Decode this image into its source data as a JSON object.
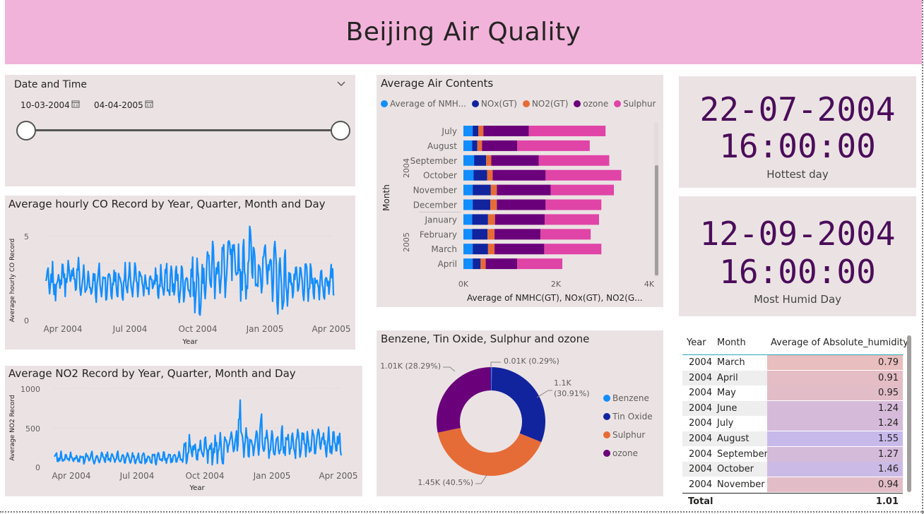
{
  "title": "Beijing Air Quality",
  "slicer": {
    "label": "Date and Time",
    "start": "10-03-2004",
    "end": "04-04-2005",
    "calendar_icon": "calendar-icon",
    "chevron_icon": "chevron-down-icon"
  },
  "co_chart": {
    "title": "Average hourly CO Record by Year, Quarter, Month and Day",
    "ylabel": "Average hourly CO Record",
    "xlabel": "Year",
    "yticks": [
      "5",
      "0"
    ],
    "xticks": [
      "Apr 2004",
      "Jul 2004",
      "Oct 2004",
      "Jan 2005",
      "Apr 2005"
    ]
  },
  "no2_chart": {
    "title": "Average NO2 Record by Year, Quarter, Month and Day",
    "ylabel": "Average NO2 Record",
    "xlabel": "Year",
    "yticks": [
      "1000",
      "500",
      "0"
    ],
    "xticks": [
      "Apr 2004",
      "Jul 2004",
      "Oct 2004",
      "Jan 2005",
      "Apr 2005"
    ]
  },
  "air_chart": {
    "title": "Average Air Contents",
    "legend": [
      {
        "label": "Average of NMH...",
        "color": "#118DFF"
      },
      {
        "label": "NOx(GT)",
        "color": "#12239E"
      },
      {
        "label": "NO2(GT)",
        "color": "#E66C37"
      },
      {
        "label": "ozone",
        "color": "#6B007B"
      },
      {
        "label": "Sulphur",
        "color": "#E044A7"
      }
    ],
    "ylabel": "Month",
    "year_labels": [
      "2004",
      "2005"
    ],
    "xticks": [
      "0K",
      "2K",
      "4K"
    ],
    "xlabel": "Average of NMHC(GT), NOx(GT), NO2(G..."
  },
  "pie_chart": {
    "title": "Benzene, Tin Oxide, Sulphur and ozone",
    "labels": {
      "benzene": "0.01K (0.29%)",
      "tin_top": "1.1K",
      "tin_bot": "(30.91%)",
      "sulphur": "1.45K (40.5%)",
      "ozone": "1.01K (28.29%)"
    },
    "legend": [
      {
        "label": "Benzene",
        "color": "#118DFF"
      },
      {
        "label": "Tin Oxide",
        "color": "#12239E"
      },
      {
        "label": "Sulphur",
        "color": "#E66C37"
      },
      {
        "label": "ozone",
        "color": "#6B007B"
      }
    ]
  },
  "cards": [
    {
      "date": "22-07-2004",
      "time": "16:00:00",
      "label": "Hottest day"
    },
    {
      "date": "12-09-2004",
      "time": "16:00:00",
      "label": "Most Humid Day"
    }
  ],
  "humidity_table": {
    "headers": [
      "Year",
      "Month",
      "Average of Absolute_humidity"
    ],
    "rows": [
      {
        "year": "2004",
        "month": "March",
        "value": "0.79"
      },
      {
        "year": "2004",
        "month": "April",
        "value": "0.91"
      },
      {
        "year": "2004",
        "month": "May",
        "value": "0.95"
      },
      {
        "year": "2004",
        "month": "June",
        "value": "1.24"
      },
      {
        "year": "2004",
        "month": "July",
        "value": "1.24"
      },
      {
        "year": "2004",
        "month": "August",
        "value": "1.55"
      },
      {
        "year": "2004",
        "month": "September",
        "value": "1.27"
      },
      {
        "year": "2004",
        "month": "October",
        "value": "1.46"
      },
      {
        "year": "2004",
        "month": "November",
        "value": "0.94"
      }
    ],
    "total_label": "Total",
    "total_value": "1.01"
  },
  "chart_data": [
    {
      "type": "bar",
      "title": "Average Air Contents",
      "orientation": "horizontal-stacked",
      "categories": [
        "July",
        "August",
        "September",
        "October",
        "November",
        "December",
        "January",
        "February",
        "March",
        "April"
      ],
      "groups": {
        "2004": [
          "July",
          "August",
          "September",
          "October",
          "November",
          "December"
        ],
        "2005": [
          "January",
          "February",
          "March",
          "April"
        ]
      },
      "series": [
        {
          "name": "Average of NMHC(GT)",
          "values": [
            200,
            190,
            230,
            220,
            200,
            200,
            190,
            190,
            200,
            200
          ]
        },
        {
          "name": "NOx(GT)",
          "values": [
            120,
            110,
            260,
            290,
            390,
            380,
            340,
            330,
            330,
            170
          ]
        },
        {
          "name": "NO2(GT)",
          "values": [
            110,
            100,
            110,
            120,
            130,
            140,
            150,
            150,
            140,
            110
          ]
        },
        {
          "name": "ozone",
          "values": [
            980,
            760,
            1020,
            1140,
            1160,
            1050,
            1070,
            990,
            1070,
            680
          ]
        },
        {
          "name": "Sulphur",
          "values": [
            1650,
            1560,
            1520,
            1630,
            1360,
            1200,
            1170,
            1080,
            1230,
            970
          ]
        }
      ],
      "xlim": [
        0,
        4000
      ],
      "ylabel": "Month",
      "xlabel": "Average of NMHC(GT), NOx(GT), NO2(G..."
    },
    {
      "type": "pie",
      "title": "Benzene, Tin Oxide, Sulphur and ozone",
      "labels": [
        "Benzene",
        "Tin Oxide",
        "Sulphur",
        "ozone"
      ],
      "values": [
        10.4,
        1104,
        1447,
        1010
      ],
      "percent": [
        0.29,
        30.91,
        40.5,
        28.29
      ],
      "donut": true
    },
    {
      "type": "line",
      "title": "Average hourly CO Record by Year, Quarter, Month and Day",
      "x_range": [
        "2004-03-10",
        "2005-04-04"
      ],
      "ylim": [
        0,
        5.5
      ],
      "xlabel": "Year",
      "ylabel": "Average hourly CO Record",
      "points": 390
    },
    {
      "type": "line",
      "title": "Average NO2 Record by Year, Quarter, Month and Day",
      "x_range": [
        "2004-03-10",
        "2005-04-04"
      ],
      "ylim": [
        0,
        1000
      ],
      "xlabel": "Year",
      "ylabel": "Average NO2 Record",
      "points": 390
    }
  ]
}
